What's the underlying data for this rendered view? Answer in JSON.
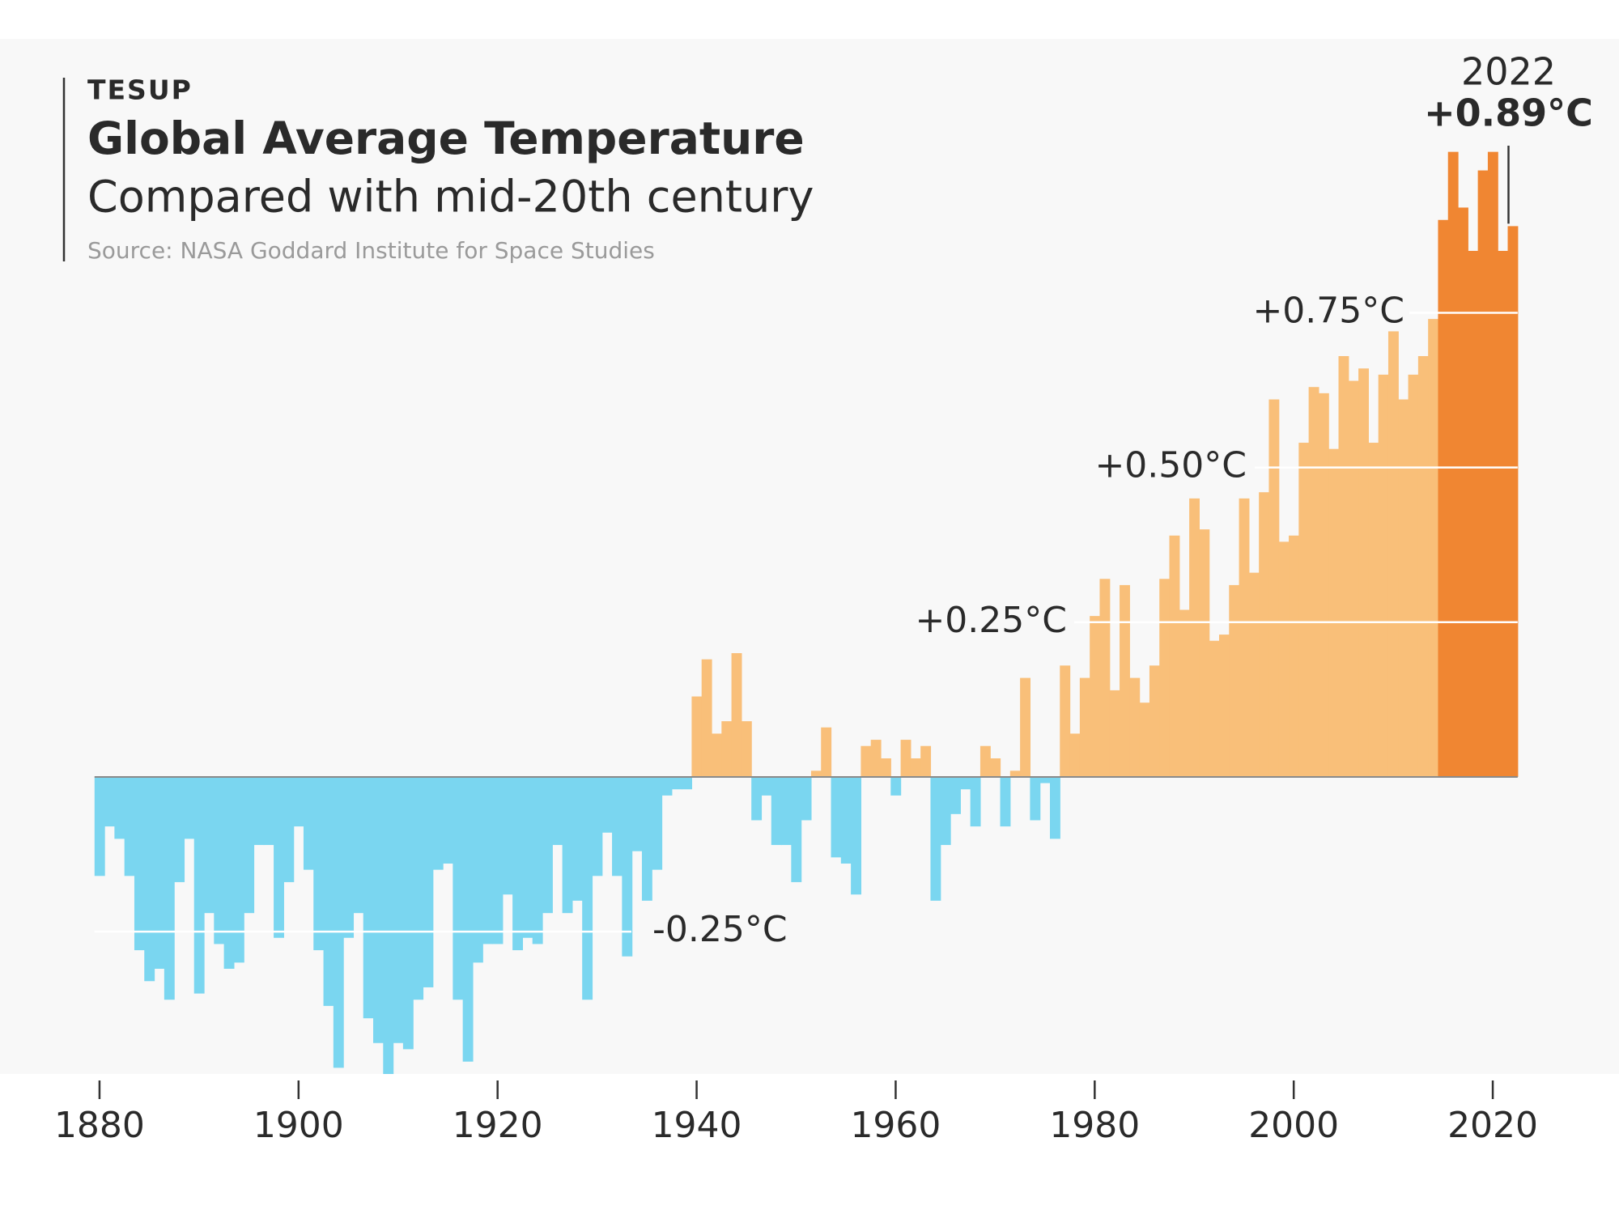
{
  "chart_data": {
    "type": "bar",
    "brand": "TESUP",
    "title": "Global Average Temperature",
    "subtitle": "Compared with mid-20th century",
    "source": "Source: NASA Goddard Institute for Space Studies",
    "x": [
      1880,
      1881,
      1882,
      1883,
      1884,
      1885,
      1886,
      1887,
      1888,
      1889,
      1890,
      1891,
      1892,
      1893,
      1894,
      1895,
      1896,
      1897,
      1898,
      1899,
      1900,
      1901,
      1902,
      1903,
      1904,
      1905,
      1906,
      1907,
      1908,
      1909,
      1910,
      1911,
      1912,
      1913,
      1914,
      1915,
      1916,
      1917,
      1918,
      1919,
      1920,
      1921,
      1922,
      1923,
      1924,
      1925,
      1926,
      1927,
      1928,
      1929,
      1930,
      1931,
      1932,
      1933,
      1934,
      1935,
      1936,
      1937,
      1938,
      1939,
      1940,
      1941,
      1942,
      1943,
      1944,
      1945,
      1946,
      1947,
      1948,
      1949,
      1950,
      1951,
      1952,
      1953,
      1954,
      1955,
      1956,
      1957,
      1958,
      1959,
      1960,
      1961,
      1962,
      1963,
      1964,
      1965,
      1966,
      1967,
      1968,
      1969,
      1970,
      1971,
      1972,
      1973,
      1974,
      1975,
      1976,
      1977,
      1978,
      1979,
      1980,
      1981,
      1982,
      1983,
      1984,
      1985,
      1986,
      1987,
      1988,
      1989,
      1990,
      1991,
      1992,
      1993,
      1994,
      1995,
      1996,
      1997,
      1998,
      1999,
      2000,
      2001,
      2002,
      2003,
      2004,
      2005,
      2006,
      2007,
      2008,
      2009,
      2010,
      2011,
      2012,
      2013,
      2014,
      2015,
      2016,
      2017,
      2018,
      2019,
      2020,
      2021,
      2022
    ],
    "values": [
      -0.16,
      -0.08,
      -0.1,
      -0.16,
      -0.28,
      -0.33,
      -0.31,
      -0.36,
      -0.17,
      -0.1,
      -0.35,
      -0.22,
      -0.27,
      -0.31,
      -0.3,
      -0.22,
      -0.11,
      -0.11,
      -0.26,
      -0.17,
      -0.08,
      -0.15,
      -0.28,
      -0.37,
      -0.47,
      -0.26,
      -0.22,
      -0.39,
      -0.43,
      -0.48,
      -0.43,
      -0.44,
      -0.36,
      -0.34,
      -0.15,
      -0.14,
      -0.36,
      -0.46,
      -0.3,
      -0.27,
      -0.27,
      -0.19,
      -0.28,
      -0.26,
      -0.27,
      -0.22,
      -0.11,
      -0.22,
      -0.2,
      -0.36,
      -0.16,
      -0.09,
      -0.16,
      -0.29,
      -0.12,
      -0.2,
      -0.15,
      -0.03,
      -0.02,
      -0.02,
      0.13,
      0.19,
      0.07,
      0.09,
      0.2,
      0.09,
      -0.07,
      -0.03,
      -0.11,
      -0.11,
      -0.17,
      -0.07,
      0.01,
      0.08,
      -0.13,
      -0.14,
      -0.19,
      0.05,
      0.06,
      0.03,
      -0.03,
      0.06,
      0.03,
      0.05,
      -0.2,
      -0.11,
      -0.06,
      -0.02,
      -0.08,
      0.05,
      0.03,
      -0.08,
      0.01,
      0.16,
      -0.07,
      -0.01,
      -0.1,
      0.18,
      0.07,
      0.16,
      0.26,
      0.32,
      0.14,
      0.31,
      0.16,
      0.12,
      0.18,
      0.32,
      0.39,
      0.27,
      0.45,
      0.4,
      0.22,
      0.23,
      0.31,
      0.45,
      0.33,
      0.46,
      0.61,
      0.38,
      0.39,
      0.54,
      0.63,
      0.62,
      0.53,
      0.68,
      0.64,
      0.66,
      0.54,
      0.65,
      0.72,
      0.61,
      0.65,
      0.68,
      0.74,
      0.9,
      1.01,
      0.92,
      0.85,
      0.98,
      1.01,
      0.85,
      0.89
    ],
    "value_labels": [
      null,
      null,
      null,
      null,
      null,
      null,
      null,
      null,
      null,
      null,
      null,
      null,
      null,
      null,
      null,
      null,
      null,
      null,
      null,
      null,
      null,
      null,
      null,
      null,
      null,
      null,
      null,
      null,
      null,
      null,
      null,
      null,
      null,
      null,
      null,
      null,
      null,
      null,
      null,
      null,
      null,
      null,
      null,
      null,
      null,
      null,
      null,
      null,
      null,
      null,
      null,
      null,
      null,
      null,
      null,
      null,
      null,
      null,
      null,
      null,
      null,
      null,
      null,
      null,
      null,
      null,
      null,
      null,
      null,
      null,
      null,
      null,
      null,
      null,
      null,
      null,
      null,
      null,
      null,
      null,
      null,
      null,
      null,
      null,
      null,
      null,
      null,
      null,
      null,
      null,
      null,
      null,
      null,
      null,
      null,
      null,
      null,
      null,
      null,
      null,
      null,
      null,
      null,
      null,
      null,
      null,
      null,
      null,
      null,
      null,
      null,
      null,
      null,
      null,
      null,
      null,
      null,
      null,
      null,
      null,
      null,
      null,
      null,
      null,
      null,
      null,
      null,
      null,
      null,
      null,
      null,
      null,
      null,
      null,
      null,
      null,
      null,
      null,
      null,
      null,
      null,
      null,
      "+0.89°C"
    ],
    "colors": [
      "#7ad6f0",
      "#7ad6f0",
      "#7ad6f0",
      "#7ad6f0",
      "#7ad6f0",
      "#7ad6f0",
      "#7ad6f0",
      "#7ad6f0",
      "#7ad6f0",
      "#7ad6f0",
      "#7ad6f0",
      "#7ad6f0",
      "#7ad6f0",
      "#7ad6f0",
      "#7ad6f0",
      "#7ad6f0",
      "#7ad6f0",
      "#7ad6f0",
      "#7ad6f0",
      "#7ad6f0",
      "#7ad6f0",
      "#7ad6f0",
      "#7ad6f0",
      "#7ad6f0",
      "#7ad6f0",
      "#7ad6f0",
      "#7ad6f0",
      "#7ad6f0",
      "#7ad6f0",
      "#7ad6f0",
      "#7ad6f0",
      "#7ad6f0",
      "#7ad6f0",
      "#7ad6f0",
      "#7ad6f0",
      "#7ad6f0",
      "#7ad6f0",
      "#7ad6f0",
      "#7ad6f0",
      "#7ad6f0",
      "#7ad6f0",
      "#7ad6f0",
      "#7ad6f0",
      "#7ad6f0",
      "#7ad6f0",
      "#7ad6f0",
      "#7ad6f0",
      "#7ad6f0",
      "#7ad6f0",
      "#7ad6f0",
      "#7ad6f0",
      "#7ad6f0",
      "#7ad6f0",
      "#7ad6f0",
      "#7ad6f0",
      "#7ad6f0",
      "#7ad6f0",
      "#7ad6f0",
      "#7ad6f0",
      "#7ad6f0",
      "#f9bf79",
      "#f9bf79",
      "#f9bf79",
      "#f9bf79",
      "#f9bf79",
      "#f9bf79",
      "#7ad6f0",
      "#7ad6f0",
      "#7ad6f0",
      "#7ad6f0",
      "#7ad6f0",
      "#7ad6f0",
      "#f9bf79",
      "#f9bf79",
      "#7ad6f0",
      "#7ad6f0",
      "#7ad6f0",
      "#f9bf79",
      "#f9bf79",
      "#f9bf79",
      "#7ad6f0",
      "#f9bf79",
      "#f9bf79",
      "#f9bf79",
      "#7ad6f0",
      "#7ad6f0",
      "#7ad6f0",
      "#7ad6f0",
      "#7ad6f0",
      "#f9bf79",
      "#f9bf79",
      "#7ad6f0",
      "#f9bf79",
      "#f9bf79",
      "#7ad6f0",
      "#7ad6f0",
      "#7ad6f0",
      "#f9bf79",
      "#f9bf79",
      "#f9bf79",
      "#f9bf79",
      "#f9bf79",
      "#f9bf79",
      "#f9bf79",
      "#f9bf79",
      "#f9bf79",
      "#f9bf79",
      "#f9bf79",
      "#f9bf79",
      "#f9bf79",
      "#f9bf79",
      "#f9bf79",
      "#f9bf79",
      "#f9bf79",
      "#f9bf79",
      "#f9bf79",
      "#f9bf79",
      "#f9bf79",
      "#f9bf79",
      "#f9bf79",
      "#f9bf79",
      "#f9bf79",
      "#f9bf79",
      "#f9bf79",
      "#f9bf79",
      "#f9bf79",
      "#f9bf79",
      "#f9bf79",
      "#f9bf79",
      "#f9bf79",
      "#f9bf79",
      "#f9bf79",
      "#f9bf79",
      "#f9bf79",
      "#f9bf79",
      "#f08632",
      "#f08632",
      "#f08632",
      "#f08632",
      "#f08632",
      "#f08632",
      "#f08632",
      "#f08632"
    ],
    "xlim": [
      1870,
      2030
    ],
    "xticks": [
      1880,
      1900,
      1920,
      1940,
      1960,
      1980,
      2000,
      2020
    ],
    "ylim": [
      -0.48,
      1.19
    ],
    "yticks": [
      {
        "value": -0.25,
        "label": "-0.25°C"
      },
      {
        "value": 0.25,
        "label": "+0.25°C"
      },
      {
        "value": 0.5,
        "label": "+0.50°C"
      },
      {
        "value": 0.75,
        "label": "+0.75°C"
      }
    ],
    "grid": true
  }
}
